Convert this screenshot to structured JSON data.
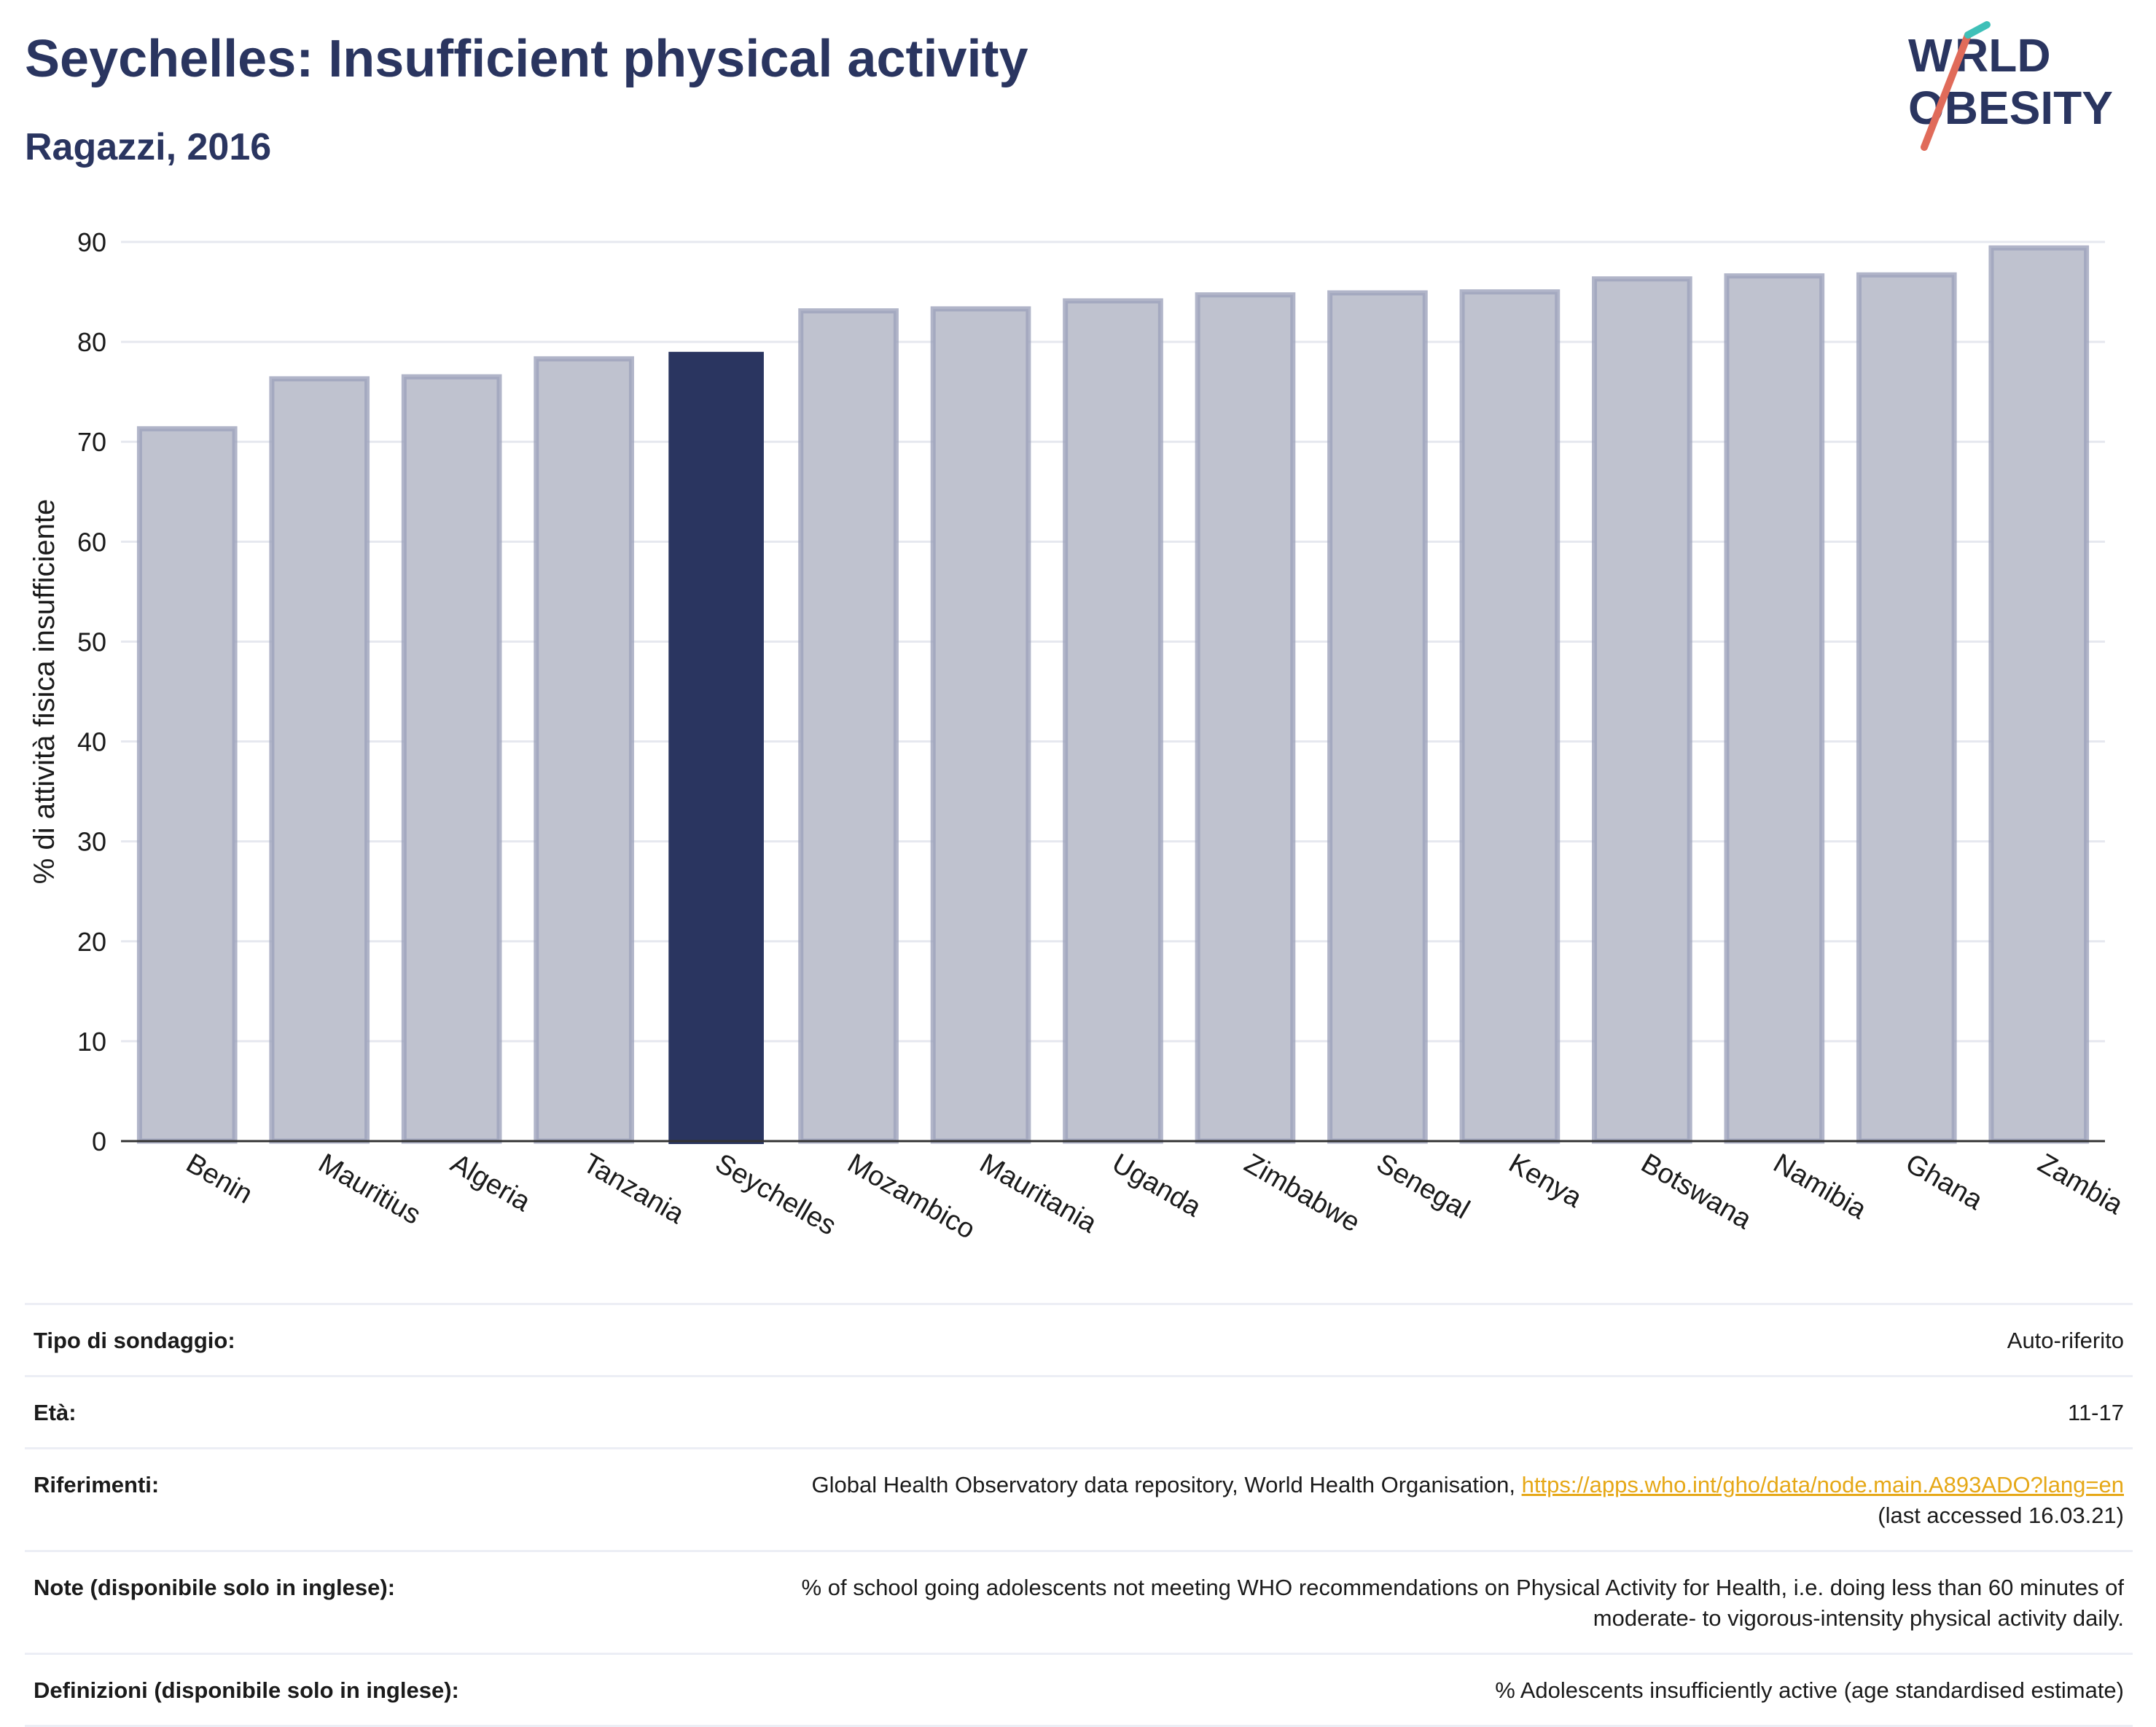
{
  "header": {
    "title": "Seychelles: Insufficient physical activity",
    "subtitle": "Ragazzi, 2016"
  },
  "logo": {
    "line1": "WORLD",
    "line2": "OBESITY"
  },
  "colors": {
    "highlight": "#2a3560",
    "bar": "#bfc2cf",
    "bar_border": "#9ea3bb",
    "title": "#2a3560",
    "link": "#e6a817"
  },
  "chart_data": {
    "type": "bar",
    "categories": [
      "Benin",
      "Mauritius",
      "Algeria",
      "Tanzania",
      "Seychelles",
      "Mozambico",
      "Mauritania",
      "Uganda",
      "Zimbabwe",
      "Senegal",
      "Kenya",
      "Botswana",
      "Namibia",
      "Ghana",
      "Zambia"
    ],
    "values": [
      71.3,
      76.3,
      76.5,
      78.3,
      79.0,
      83.1,
      83.3,
      84.1,
      84.7,
      84.9,
      85.0,
      86.3,
      86.6,
      86.7,
      89.4
    ],
    "highlight": "Seychelles",
    "ylabel": "% di attività fisica insufficiente",
    "xlabel": "",
    "ylim": [
      0,
      90
    ],
    "yticks": [
      0,
      10,
      20,
      30,
      40,
      50,
      60,
      70,
      80,
      90
    ],
    "grid": true
  },
  "meta": {
    "survey_type_label": "Tipo di sondaggio:",
    "survey_type_value": "Auto-riferito",
    "age_label": "Età:",
    "age_value": "11-17",
    "references_label": "Riferimenti:",
    "references_text": "Global Health Observatory data repository, World Health Organisation, ",
    "references_link": "https://apps.who.int/gho/data/node.main.A893ADO?lang=en",
    "references_accessed": "(last accessed 16.03.21)",
    "notes_label": "Note (disponibile solo in inglese):",
    "notes_line1": "% of school going adolescents not meeting WHO recommendations on Physical Activity for Health, i.e. doing less than 60 minutes of",
    "notes_line2": "moderate- to vigorous-intensity physical activity daily.",
    "definitions_label": "Definizioni (disponibile solo in inglese):",
    "definitions_value": "% Adolescents insufficiently active (age standardised estimate)"
  }
}
